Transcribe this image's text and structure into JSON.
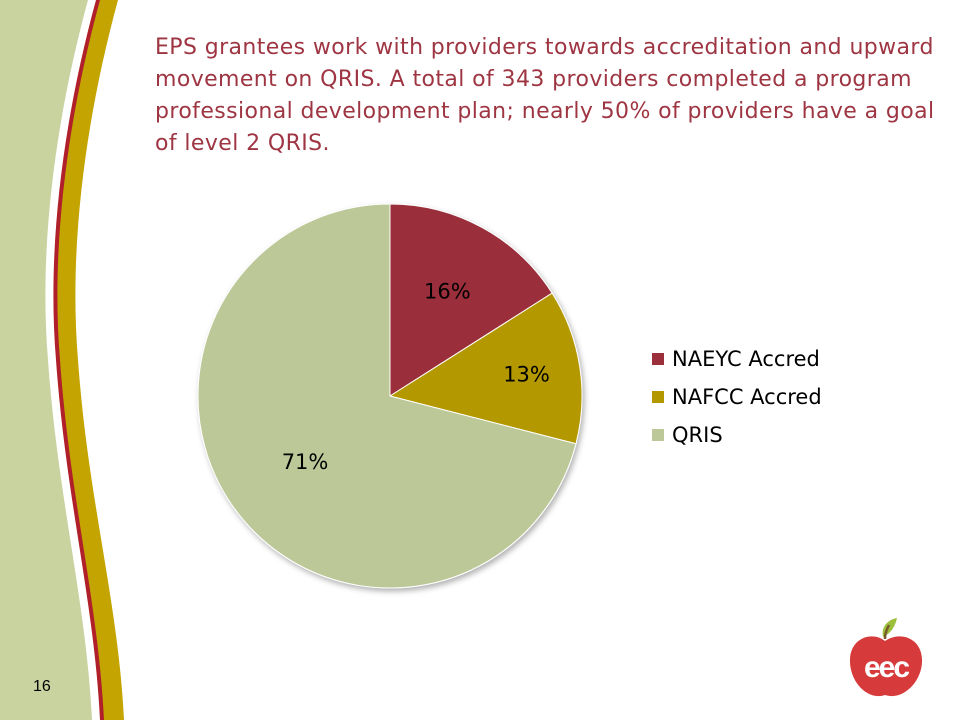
{
  "slide": {
    "title": "EPS grantees work with providers towards accreditation and upward movement on QRIS. A total of 343 providers completed a program professional development plan; nearly 50% of providers have a goal of level 2 QRIS.",
    "page_number": "16",
    "logo_text": "eec",
    "colors": {
      "title": "#9e3542",
      "side_fill": "#c9d3a0",
      "side_gold": "#c4a400",
      "side_red": "#b0202a",
      "logo_red": "#d73a3a",
      "logo_leaf": "#9cbf3c"
    }
  },
  "chart_data": {
    "type": "pie",
    "title": "",
    "legend_position": "right",
    "slices": [
      {
        "label": "NAEYC Accred",
        "value": 16,
        "display": "16%",
        "color": "#9b2f3b"
      },
      {
        "label": "NAFCC Accred",
        "value": 13,
        "display": "13%",
        "color": "#b39800"
      },
      {
        "label": "QRIS",
        "value": 71,
        "display": "71%",
        "color": "#bcc898"
      }
    ]
  }
}
